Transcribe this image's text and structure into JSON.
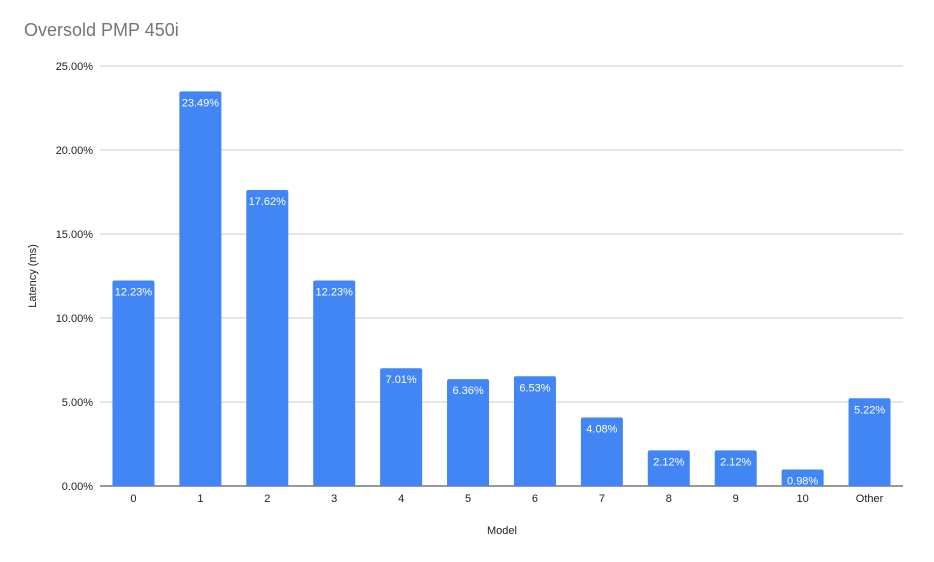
{
  "chart_data": {
    "type": "bar",
    "title": "Oversold PMP 450i",
    "xlabel": "Model",
    "ylabel": "Latency (ms)",
    "categories": [
      "0",
      "1",
      "2",
      "3",
      "4",
      "5",
      "6",
      "7",
      "8",
      "9",
      "10",
      "Other"
    ],
    "values": [
      12.23,
      23.49,
      17.62,
      12.23,
      7.01,
      6.36,
      6.53,
      4.08,
      2.12,
      2.12,
      0.98,
      5.22
    ],
    "data_labels": [
      "12.23%",
      "23.49%",
      "17.62%",
      "12.23%",
      "7.01%",
      "6.36%",
      "6.53%",
      "4.08%",
      "2.12%",
      "2.12%",
      "0.98%",
      "5.22%"
    ],
    "yticks": [
      0,
      5,
      10,
      15,
      20,
      25
    ],
    "ytick_labels": [
      "0.00%",
      "5.00%",
      "10.00%",
      "15.00%",
      "20.00%",
      "25.00%"
    ],
    "ylim": [
      0,
      25
    ],
    "grid": true,
    "legend": "none",
    "bar_color": "#4285f4"
  }
}
